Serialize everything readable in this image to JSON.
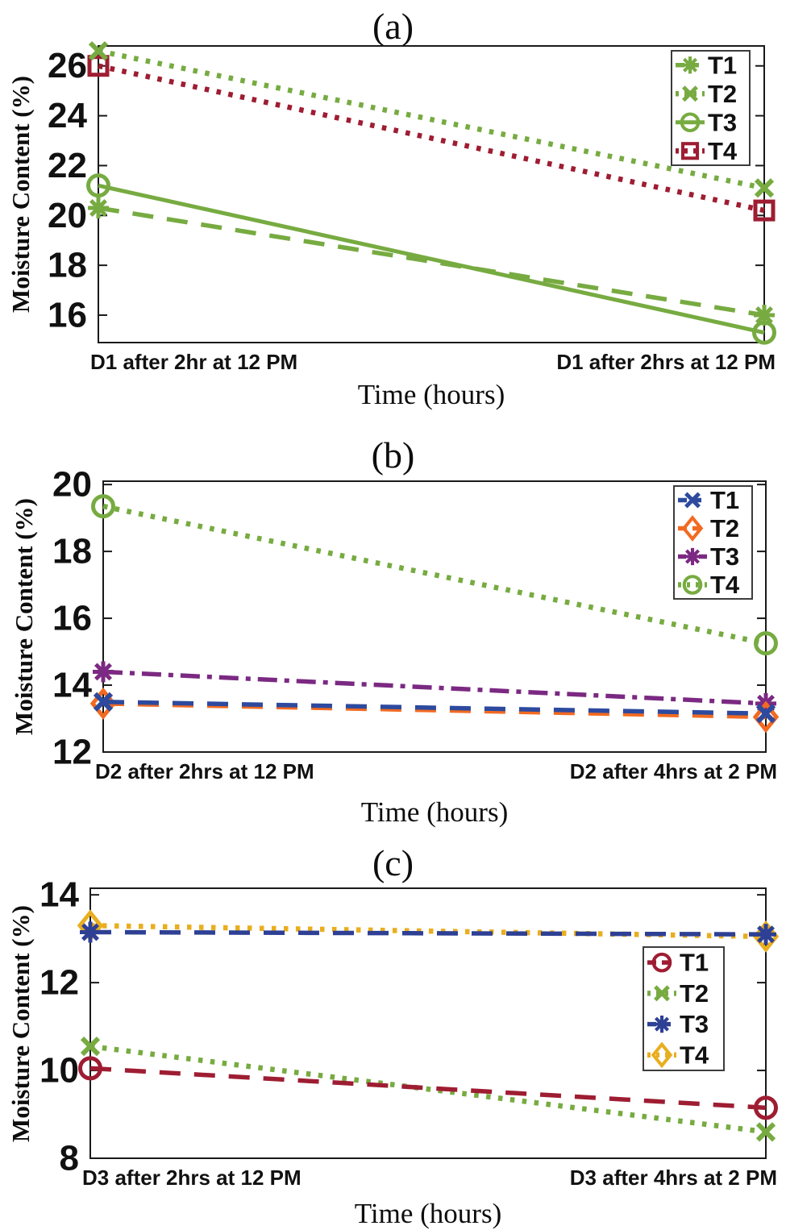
{
  "figure_label": "moisture-content-three-panel-figure",
  "chart_data": [
    {
      "type": "line",
      "title": "(a)",
      "ylabel": "Moisture Content (%)",
      "xlabel": "Time (hours)",
      "categories": [
        "D1 after 2hr at 12 PM",
        "D1 after 2hrs at 12 PM"
      ],
      "ylim": [
        14.9,
        26.8
      ],
      "yticks": [
        16,
        18,
        20,
        22,
        24,
        26
      ],
      "grid": false,
      "legend_position": "top-right",
      "series": [
        {
          "name": "T1",
          "color": "#77ab41",
          "linestyle": "dashed",
          "marker": "asterisk",
          "values": [
            20.3,
            16.0
          ]
        },
        {
          "name": "T2",
          "color": "#77ab41",
          "linestyle": "dotted",
          "marker": "x",
          "values": [
            26.6,
            21.1
          ]
        },
        {
          "name": "T3",
          "color": "#77ab41",
          "linestyle": "solid",
          "marker": "circle",
          "values": [
            21.2,
            15.3
          ]
        },
        {
          "name": "T4",
          "color": "#9e1d32",
          "linestyle": "dotted",
          "marker": "square",
          "values": [
            26.0,
            20.2
          ]
        }
      ]
    },
    {
      "type": "line",
      "title": "(b)",
      "ylabel": "Moisture Content (%)",
      "xlabel": "Time (hours)",
      "categories": [
        "D2 after 2hrs at 12 PM",
        "D2 after 4hrs at 2 PM"
      ],
      "ylim": [
        12,
        20.1
      ],
      "yticks": [
        12,
        14,
        16,
        18,
        20
      ],
      "grid": false,
      "legend_position": "top-right",
      "series": [
        {
          "name": "T1",
          "color": "#2d4a9e",
          "linestyle": "dashed",
          "marker": "x",
          "values": [
            13.5,
            13.15
          ]
        },
        {
          "name": "T2",
          "color": "#f26a21",
          "linestyle": "dashed",
          "marker": "diamond",
          "values": [
            13.45,
            13.05
          ]
        },
        {
          "name": "T3",
          "color": "#7b2982",
          "linestyle": "dashdot",
          "marker": "asterisk",
          "values": [
            14.4,
            13.45
          ]
        },
        {
          "name": "T4",
          "color": "#77ab41",
          "linestyle": "dotted",
          "marker": "circle",
          "values": [
            19.35,
            15.25
          ]
        }
      ]
    },
    {
      "type": "line",
      "title": "(c)",
      "ylabel": "Moisture Content (%)",
      "xlabel": "Time (hours)",
      "categories": [
        "D3 after 2hrs at 12 PM",
        "D3 after 4hrs at 2 PM"
      ],
      "ylim": [
        8,
        14.15
      ],
      "yticks": [
        8,
        10,
        12,
        14
      ],
      "grid": false,
      "legend_position": "middle-right",
      "series": [
        {
          "name": "T1",
          "color": "#9e1d32",
          "linestyle": "dashed",
          "marker": "circle",
          "values": [
            10.05,
            9.15
          ]
        },
        {
          "name": "T2",
          "color": "#77ab41",
          "linestyle": "dotted",
          "marker": "x",
          "values": [
            10.55,
            8.6
          ]
        },
        {
          "name": "T3",
          "color": "#2e4094",
          "linestyle": "dashed",
          "marker": "asterisk",
          "values": [
            13.15,
            13.1
          ]
        },
        {
          "name": "T4",
          "color": "#e9ae1f",
          "linestyle": "dotted",
          "marker": "diamond",
          "values": [
            13.3,
            13.05
          ]
        }
      ]
    }
  ],
  "style_colors": {
    "frame": "#1a1a1a",
    "text": "#111111",
    "background": "#ffffff"
  }
}
